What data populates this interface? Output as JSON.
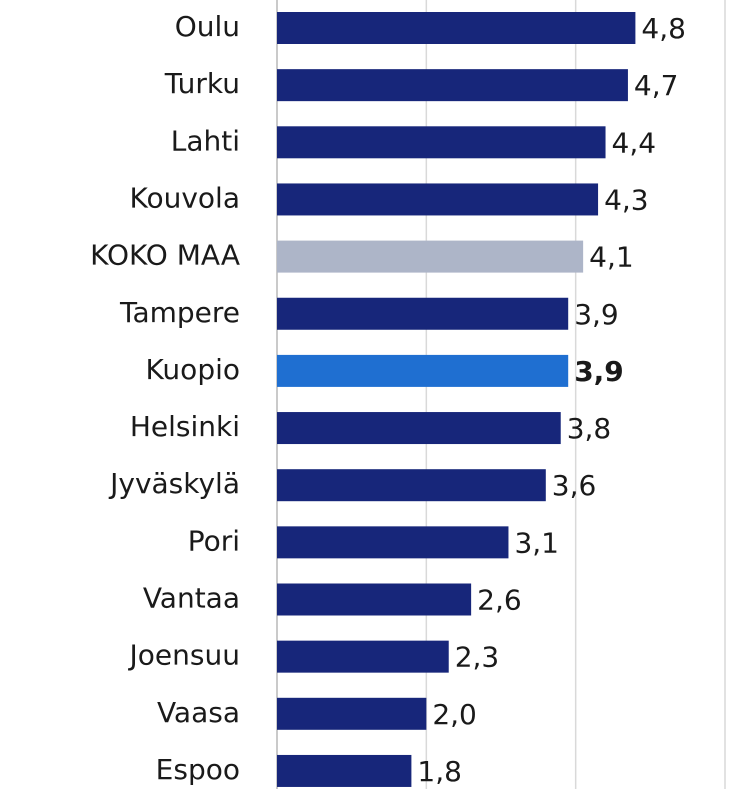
{
  "chart_data": {
    "type": "hbar",
    "categories": [
      "Oulu",
      "Turku",
      "Lahti",
      "Kouvola",
      "KOKO MAA",
      "Tampere",
      "Kuopio",
      "Helsinki",
      "Jyväskylä",
      "Pori",
      "Vantaa",
      "Joensuu",
      "Vaasa",
      "Espoo"
    ],
    "values": [
      4.8,
      4.7,
      4.4,
      4.3,
      4.1,
      3.9,
      3.9,
      3.8,
      3.6,
      3.1,
      2.6,
      2.3,
      2.0,
      1.8
    ],
    "value_labels": [
      "4,8",
      "4,7",
      "4,4",
      "4,3",
      "4,1",
      "3,9",
      "3,9",
      "3,8",
      "3,6",
      "3,1",
      "2,6",
      "2,3",
      "2,0",
      "1,8"
    ],
    "colors": [
      "#17267a",
      "#17267a",
      "#17267a",
      "#17267a",
      "#adb5c8",
      "#17267a",
      "#1f6fd1",
      "#17267a",
      "#17267a",
      "#17267a",
      "#17267a",
      "#17267a",
      "#17267a",
      "#17267a"
    ],
    "bold": [
      false,
      false,
      false,
      false,
      false,
      false,
      true,
      false,
      false,
      false,
      false,
      false,
      false,
      false
    ],
    "xlim": [
      0,
      6
    ],
    "xticks": [
      0,
      2,
      4,
      6
    ],
    "grid": true
  }
}
